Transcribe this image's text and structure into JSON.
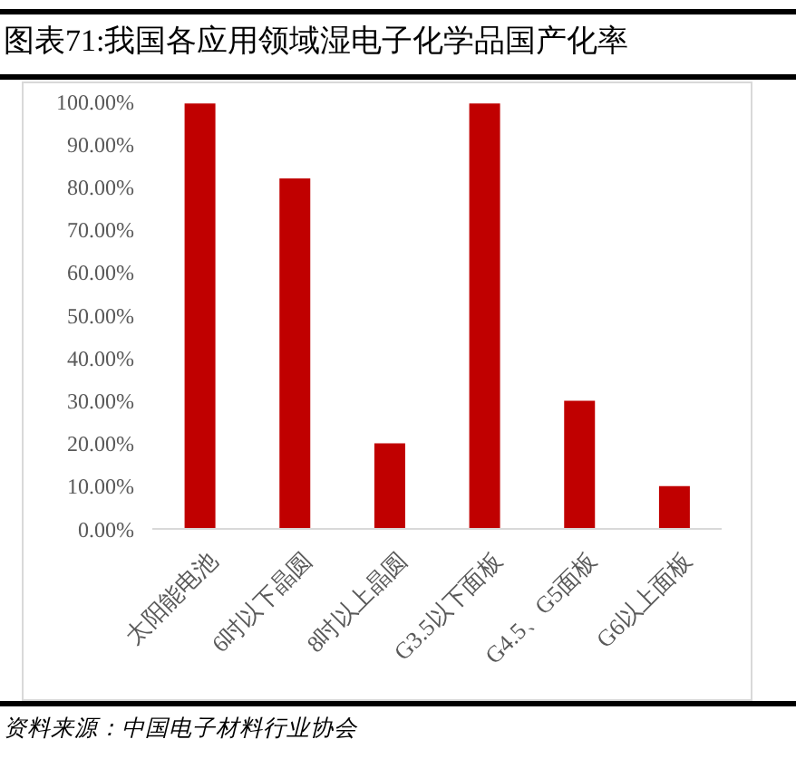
{
  "chart_data": {
    "type": "bar",
    "title": "图表71:我国各应用领域湿电子化学品国产化率",
    "categories": [
      "太阳能电池",
      "6吋以下晶圆",
      "8吋以上晶圆",
      "G3.5以下面板",
      "G4.5、G5面板",
      "G6以上面板"
    ],
    "values": [
      99.5,
      82,
      20,
      99.5,
      30,
      10
    ],
    "color": "#c00000",
    "ylim": [
      0,
      100
    ],
    "yticks": [
      {
        "value": 0,
        "label": "0.00%"
      },
      {
        "value": 10,
        "label": "10.00%"
      },
      {
        "value": 20,
        "label": "20.00%"
      },
      {
        "value": 30,
        "label": "30.00%"
      },
      {
        "value": 40,
        "label": "40.00%"
      },
      {
        "value": 50,
        "label": "50.00%"
      },
      {
        "value": 60,
        "label": "60.00%"
      },
      {
        "value": 70,
        "label": "70.00%"
      },
      {
        "value": 80,
        "label": "80.00%"
      },
      {
        "value": 90,
        "label": "90.00%"
      },
      {
        "value": 100,
        "label": "100.00%"
      }
    ],
    "annotations": [
      "资料来源：中国电子材料行业协会"
    ]
  }
}
